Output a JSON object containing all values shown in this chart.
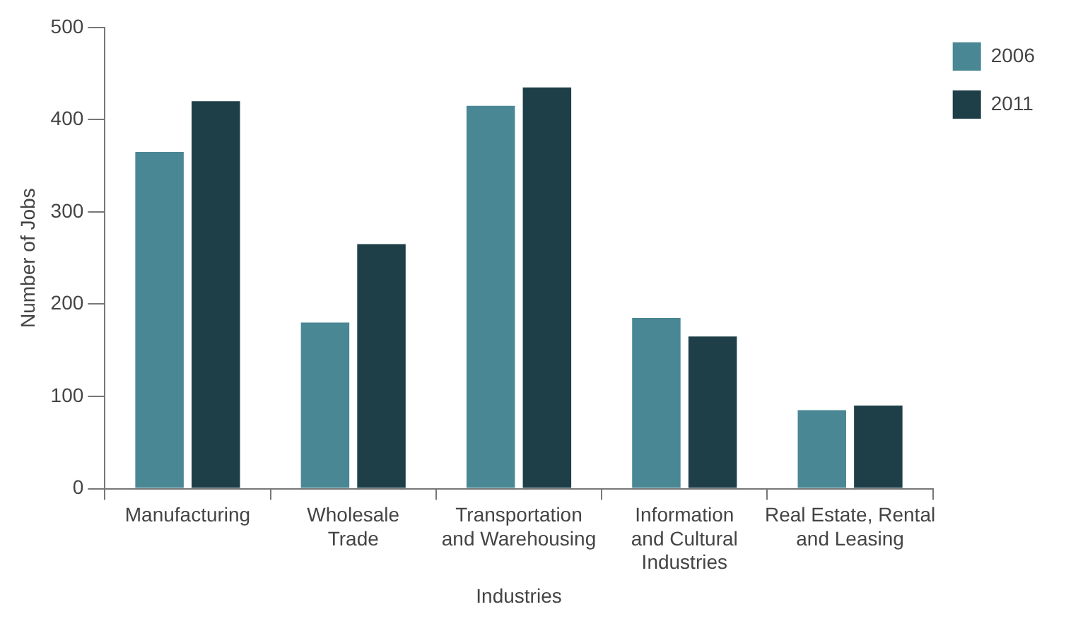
{
  "chart_data": {
    "type": "bar",
    "xlabel": "Industries",
    "ylabel": "Number of Jobs",
    "categories": [
      "Manufacturing",
      "Wholesale\nTrade",
      "Transportation\nand Warehousing",
      "Information\nand Cultural\nIndustries",
      "Real Estate, Rental\nand Leasing"
    ],
    "series": [
      {
        "name": "2006",
        "color": "#4a8795",
        "values": [
          365,
          180,
          415,
          185,
          85
        ]
      },
      {
        "name": "2011",
        "color": "#1e3f48",
        "values": [
          420,
          265,
          435,
          165,
          90
        ]
      }
    ],
    "ylim": [
      0,
      500
    ],
    "yticks": [
      0,
      100,
      200,
      300,
      400,
      500
    ],
    "grid": false,
    "legend": "top right"
  }
}
